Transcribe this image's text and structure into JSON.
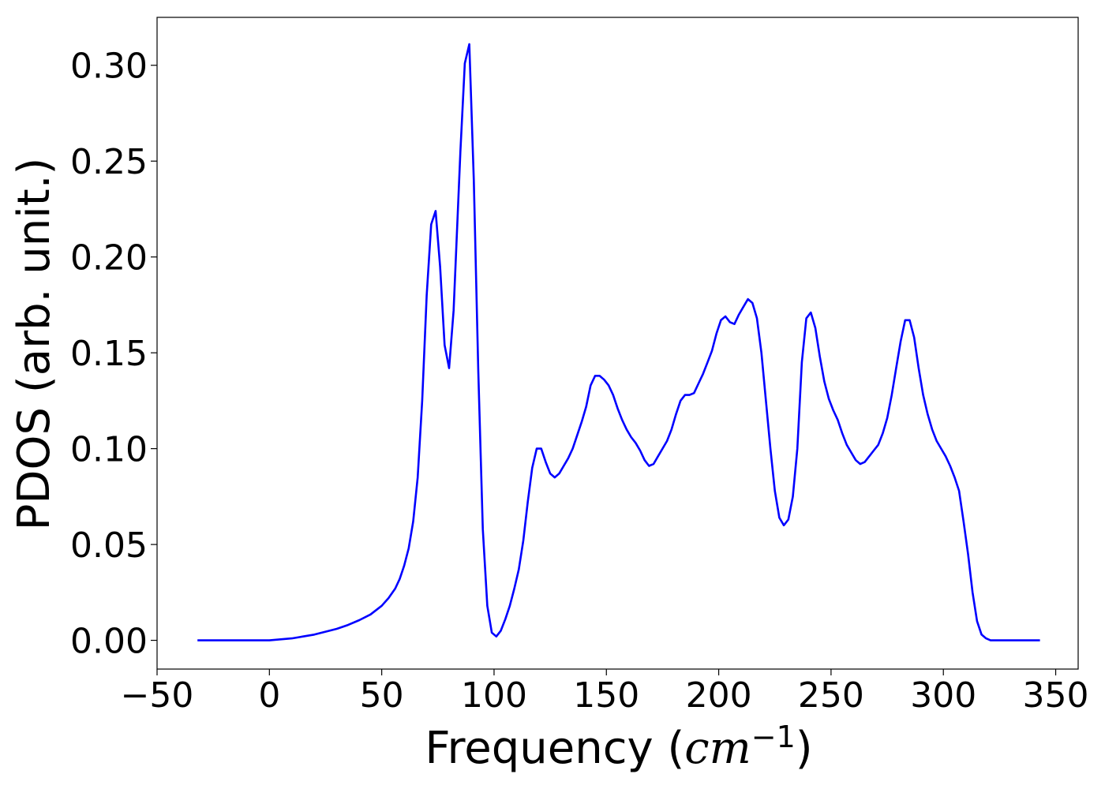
{
  "chart_data": {
    "type": "line",
    "title": "",
    "xlabel_main": "Frequency (",
    "xlabel_math": "cm",
    "xlabel_sup": "−1",
    "xlabel_close": ")",
    "ylabel": "PDOS (arb. unit.)",
    "xlim": [
      -50,
      360
    ],
    "ylim": [
      -0.015,
      0.325
    ],
    "xticks": [
      -50,
      0,
      50,
      100,
      150,
      200,
      250,
      300,
      350
    ],
    "xtick_labels": [
      "−50",
      "0",
      "50",
      "100",
      "150",
      "200",
      "250",
      "300",
      "350"
    ],
    "yticks": [
      0.0,
      0.05,
      0.1,
      0.15,
      0.2,
      0.25,
      0.3
    ],
    "ytick_labels": [
      "0.00",
      "0.05",
      "0.10",
      "0.15",
      "0.20",
      "0.25",
      "0.30"
    ],
    "grid": false,
    "legend": "none",
    "series": [
      {
        "color": "#0000ff",
        "x": [
          -32,
          -20,
          -10,
          0,
          5,
          10,
          15,
          20,
          25,
          30,
          35,
          40,
          45,
          50,
          53,
          56,
          58,
          60,
          62,
          64,
          66,
          68,
          70,
          72,
          74,
          76,
          78,
          80,
          82,
          85,
          87,
          89,
          91,
          93,
          95,
          97,
          99,
          101,
          103,
          105,
          107,
          109,
          111,
          113,
          115,
          117,
          119,
          121,
          123,
          125,
          127,
          129,
          131,
          133,
          135,
          137,
          139,
          141,
          143,
          145,
          147,
          149,
          151,
          153,
          155,
          157,
          159,
          161,
          163,
          165,
          167,
          169,
          171,
          173,
          175,
          177,
          179,
          181,
          183,
          185,
          187,
          189,
          191,
          193,
          195,
          197,
          199,
          201,
          203,
          205,
          207,
          209,
          211,
          213,
          215,
          217,
          219,
          221,
          223,
          225,
          227,
          229,
          231,
          233,
          235,
          237,
          239,
          241,
          243,
          245,
          247,
          249,
          251,
          253,
          255,
          257,
          259,
          261,
          263,
          265,
          267,
          269,
          271,
          273,
          275,
          277,
          279,
          281,
          283,
          285,
          287,
          289,
          291,
          293,
          295,
          297,
          299,
          301,
          303,
          305,
          307,
          309,
          311,
          313,
          315,
          317,
          319,
          321,
          325,
          330,
          335,
          343
        ],
        "y": [
          0.0,
          0.0,
          0.0,
          0.0,
          0.0005,
          0.001,
          0.002,
          0.003,
          0.0045,
          0.006,
          0.008,
          0.0105,
          0.0135,
          0.018,
          0.022,
          0.027,
          0.032,
          0.039,
          0.048,
          0.062,
          0.085,
          0.125,
          0.18,
          0.217,
          0.224,
          0.195,
          0.154,
          0.142,
          0.172,
          0.255,
          0.301,
          0.311,
          0.24,
          0.14,
          0.058,
          0.018,
          0.004,
          0.002,
          0.005,
          0.011,
          0.018,
          0.027,
          0.037,
          0.052,
          0.072,
          0.09,
          0.1,
          0.1,
          0.093,
          0.087,
          0.085,
          0.087,
          0.091,
          0.095,
          0.1,
          0.107,
          0.114,
          0.122,
          0.133,
          0.138,
          0.138,
          0.136,
          0.133,
          0.128,
          0.121,
          0.115,
          0.11,
          0.106,
          0.103,
          0.099,
          0.094,
          0.091,
          0.092,
          0.096,
          0.1,
          0.104,
          0.11,
          0.118,
          0.125,
          0.128,
          0.128,
          0.129,
          0.134,
          0.139,
          0.145,
          0.151,
          0.16,
          0.167,
          0.169,
          0.166,
          0.165,
          0.17,
          0.174,
          0.178,
          0.176,
          0.168,
          0.15,
          0.125,
          0.1,
          0.078,
          0.064,
          0.06,
          0.063,
          0.075,
          0.1,
          0.145,
          0.168,
          0.171,
          0.163,
          0.148,
          0.135,
          0.126,
          0.12,
          0.115,
          0.108,
          0.102,
          0.098,
          0.094,
          0.092,
          0.093,
          0.096,
          0.099,
          0.102,
          0.108,
          0.116,
          0.128,
          0.142,
          0.156,
          0.167,
          0.167,
          0.158,
          0.142,
          0.128,
          0.118,
          0.11,
          0.104,
          0.1,
          0.096,
          0.091,
          0.085,
          0.078,
          0.062,
          0.045,
          0.025,
          0.01,
          0.003,
          0.001,
          0.0,
          0.0,
          0.0,
          0.0,
          0.0
        ]
      }
    ]
  }
}
